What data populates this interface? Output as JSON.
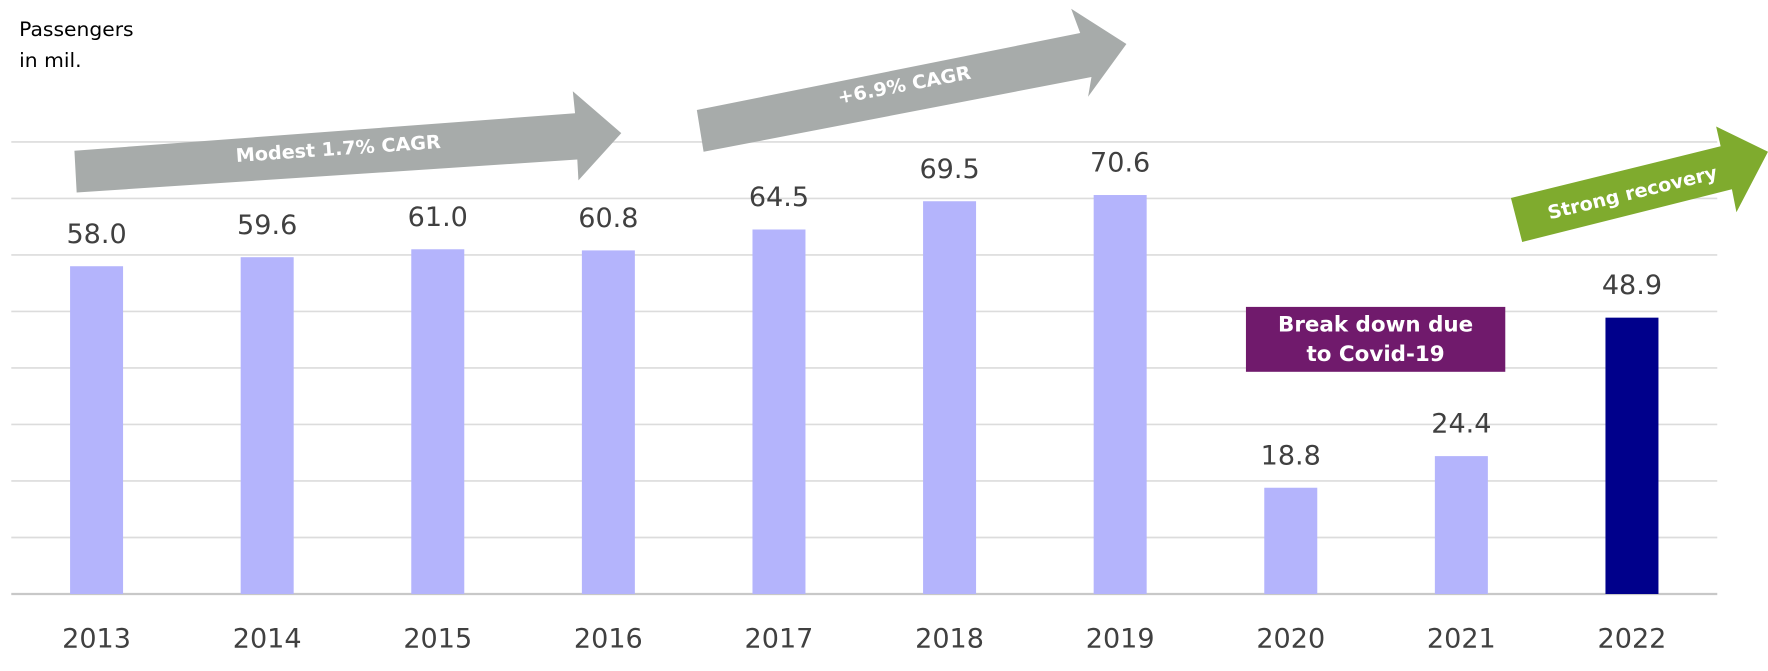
{
  "chart_data": {
    "type": "bar",
    "y_label": [
      "Passengers",
      "in mil."
    ],
    "categories": [
      "2013",
      "2014",
      "2015",
      "2016",
      "2017",
      "2018",
      "2019",
      "2020",
      "2021",
      "2022"
    ],
    "values": [
      58.0,
      59.6,
      61.0,
      60.8,
      64.5,
      69.5,
      70.6,
      18.8,
      24.4,
      48.9
    ],
    "value_labels": [
      "58.0",
      "59.6",
      "61.0",
      "60.8",
      "64.5",
      "69.5",
      "70.6",
      "18.8",
      "24.4",
      "48.9"
    ],
    "colors": [
      "#b4b4fc",
      "#b4b4fc",
      "#b4b4fc",
      "#b4b4fc",
      "#b4b4fc",
      "#b4b4fc",
      "#b4b4fc",
      "#b4b4fc",
      "#b4b4fc",
      "#00008b"
    ],
    "ylim": [
      0,
      80
    ],
    "yticks": [
      0,
      10,
      20,
      30,
      40,
      50,
      60,
      70,
      80
    ],
    "grid": true,
    "annotations": [
      "Modest 1.7% CAGR",
      "+6.9% CAGR",
      "Strong recovery"
    ],
    "callout": [
      "Break down due",
      "to Covid-19"
    ]
  }
}
